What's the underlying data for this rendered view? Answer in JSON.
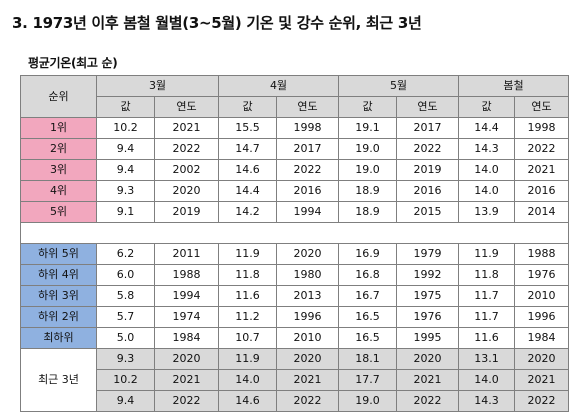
{
  "title": "3. 1973년 이후 봄철 월별(3~5월) 기온 및 강수 순위, 최근 3년",
  "subtitle": "평균기온(최고 순)",
  "header": {
    "rank": "순위",
    "months": [
      "3월",
      "4월",
      "5월",
      "봄철"
    ],
    "value_label": "값",
    "year_label": "연도"
  },
  "top_rows": [
    {
      "rank": "1위",
      "cells": [
        "10.2",
        "2021",
        "15.5",
        "1998",
        "19.1",
        "2017",
        "14.4",
        "1998"
      ]
    },
    {
      "rank": "2위",
      "cells": [
        "9.4",
        "2022",
        "14.7",
        "2017",
        "19.0",
        "2022",
        "14.3",
        "2022"
      ]
    },
    {
      "rank": "3위",
      "cells": [
        "9.4",
        "2002",
        "14.6",
        "2022",
        "19.0",
        "2019",
        "14.0",
        "2021"
      ]
    },
    {
      "rank": "4위",
      "cells": [
        "9.3",
        "2020",
        "14.4",
        "2016",
        "18.9",
        "2016",
        "14.0",
        "2016"
      ]
    },
    {
      "rank": "5위",
      "cells": [
        "9.1",
        "2019",
        "14.2",
        "1994",
        "18.9",
        "2015",
        "13.9",
        "2014"
      ]
    }
  ],
  "bottom_rows": [
    {
      "rank": "하위 5위",
      "cells": [
        "6.2",
        "2011",
        "11.9",
        "2020",
        "16.9",
        "1979",
        "11.9",
        "1988"
      ]
    },
    {
      "rank": "하위 4위",
      "cells": [
        "6.0",
        "1988",
        "11.8",
        "1980",
        "16.8",
        "1992",
        "11.8",
        "1976"
      ]
    },
    {
      "rank": "하위 3위",
      "cells": [
        "5.8",
        "1994",
        "11.6",
        "2013",
        "16.7",
        "1975",
        "11.7",
        "2010"
      ]
    },
    {
      "rank": "하위 2위",
      "cells": [
        "5.7",
        "1974",
        "11.2",
        "1996",
        "16.5",
        "1976",
        "11.7",
        "1996"
      ]
    },
    {
      "rank": "최하위",
      "cells": [
        "5.0",
        "1984",
        "10.7",
        "2010",
        "16.5",
        "1995",
        "11.6",
        "1984"
      ]
    }
  ],
  "recent": {
    "label": "최근 3년",
    "rows": [
      [
        "9.3",
        "2020",
        "11.9",
        "2020",
        "18.1",
        "2020",
        "13.1",
        "2020"
      ],
      [
        "10.2",
        "2021",
        "14.0",
        "2021",
        "17.7",
        "2021",
        "14.0",
        "2021"
      ],
      [
        "9.4",
        "2022",
        "14.6",
        "2022",
        "19.0",
        "2022",
        "14.3",
        "2022"
      ]
    ]
  },
  "colors": {
    "header_bg": "#d9d9d9",
    "top_rank_bg": "#f2a7be",
    "bottom_rank_bg": "#8fb1e0",
    "recent_bg": "#d9d9d9",
    "border": "#7f7f7f"
  }
}
